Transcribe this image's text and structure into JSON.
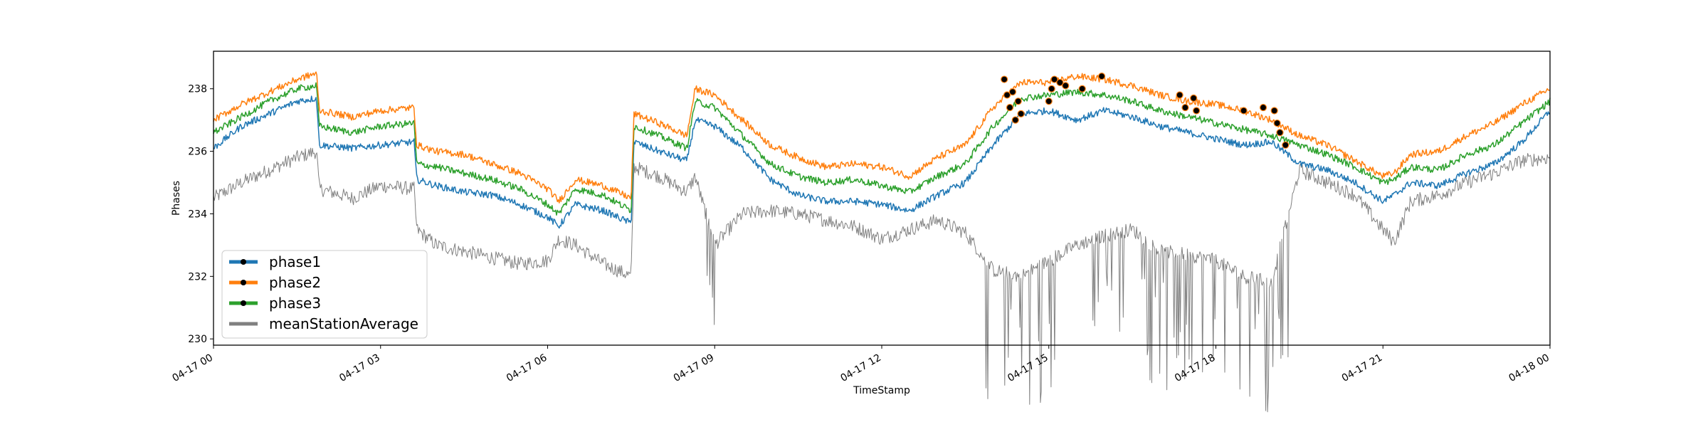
{
  "chart_data": {
    "type": "line",
    "title": "",
    "xlabel": "TimeStamp",
    "ylabel": "Phases",
    "ylim": [
      229.8,
      239.2
    ],
    "xlim_hours": [
      0,
      24
    ],
    "y_ticks": [
      230,
      232,
      234,
      236,
      238
    ],
    "x_ticks": [
      {
        "hour": 0,
        "label": "04-17 00"
      },
      {
        "hour": 3,
        "label": "04-17 03"
      },
      {
        "hour": 6,
        "label": "04-17 06"
      },
      {
        "hour": 9,
        "label": "04-17 09"
      },
      {
        "hour": 12,
        "label": "04-17 12"
      },
      {
        "hour": 15,
        "label": "04-17 15"
      },
      {
        "hour": 18,
        "label": "04-17 18"
      },
      {
        "hour": 21,
        "label": "04-17 21"
      },
      {
        "hour": 24,
        "label": "04-18 00"
      }
    ],
    "grid": false,
    "legend_position": "lower-left",
    "x_hours": [
      0,
      0.5,
      1,
      1.5,
      1.85,
      1.9,
      2.5,
      3,
      3.6,
      3.65,
      4,
      4.5,
      5,
      5.5,
      6,
      6.2,
      6.5,
      7,
      7.5,
      7.55,
      8,
      8.5,
      8.65,
      9,
      9.5,
      10,
      10.5,
      11,
      11.5,
      12,
      12.5,
      13,
      13.5,
      14,
      14.5,
      15,
      15.5,
      16,
      16.5,
      17,
      17.5,
      18,
      18.5,
      19,
      19.5,
      20,
      20.5,
      21,
      21.2,
      21.5,
      22,
      22.5,
      23,
      23.5,
      24
    ],
    "series": [
      {
        "name": "phase1",
        "color": "#1f77b4",
        "markers": true,
        "values": [
          236.1,
          236.8,
          237.2,
          237.6,
          237.7,
          236.2,
          236.1,
          236.2,
          236.3,
          235.1,
          234.9,
          234.7,
          234.6,
          234.3,
          233.9,
          233.6,
          234.3,
          234.1,
          233.7,
          236.3,
          236.0,
          235.7,
          237.0,
          236.8,
          236.1,
          235.1,
          234.6,
          234.4,
          234.4,
          234.3,
          234.1,
          234.6,
          235.0,
          236.2,
          237.2,
          237.3,
          237.0,
          237.3,
          237.1,
          236.8,
          236.6,
          236.4,
          236.2,
          236.3,
          235.6,
          235.4,
          235.0,
          234.4,
          234.6,
          235.0,
          234.9,
          235.3,
          235.6,
          236.3,
          237.3
        ]
      },
      {
        "name": "phase2",
        "color": "#ff7f0e",
        "markers": true,
        "values": [
          237.0,
          237.5,
          237.9,
          238.3,
          238.5,
          237.3,
          237.1,
          237.3,
          237.4,
          236.2,
          236.0,
          235.9,
          235.6,
          235.3,
          234.8,
          234.4,
          235.1,
          234.9,
          234.5,
          237.2,
          236.9,
          236.5,
          238.0,
          237.8,
          237.0,
          236.2,
          235.8,
          235.5,
          235.6,
          235.5,
          235.2,
          235.8,
          236.2,
          237.4,
          238.2,
          238.2,
          238.4,
          238.3,
          238.1,
          237.8,
          237.6,
          237.5,
          237.3,
          237.0,
          236.5,
          236.2,
          235.7,
          235.2,
          235.3,
          235.9,
          236.0,
          236.5,
          236.9,
          237.5,
          238.0
        ]
      },
      {
        "name": "phase3",
        "color": "#2ca02c",
        "markers": true,
        "values": [
          236.6,
          237.1,
          237.6,
          238.0,
          238.1,
          236.8,
          236.6,
          236.8,
          236.9,
          235.6,
          235.5,
          235.3,
          235.1,
          234.8,
          234.3,
          234.0,
          234.8,
          234.6,
          234.1,
          236.8,
          236.5,
          236.1,
          237.6,
          237.4,
          236.5,
          235.6,
          235.2,
          235.0,
          235.1,
          234.9,
          234.7,
          235.2,
          235.6,
          236.8,
          237.7,
          237.8,
          237.9,
          237.8,
          237.6,
          237.3,
          237.1,
          236.9,
          236.7,
          236.5,
          236.2,
          235.9,
          235.5,
          235.0,
          235.1,
          235.5,
          235.4,
          235.9,
          236.2,
          236.9,
          237.6
        ]
      },
      {
        "name": "meanStationAverage",
        "color": "#808080",
        "markers": false,
        "values": [
          234.5,
          235.0,
          235.4,
          235.8,
          236.0,
          234.8,
          234.5,
          234.9,
          234.8,
          233.5,
          233.0,
          232.8,
          232.6,
          232.4,
          232.5,
          233.2,
          233.0,
          232.4,
          232.0,
          235.5,
          235.2,
          234.7,
          235.2,
          233.0,
          234.0,
          234.1,
          234.0,
          233.8,
          233.6,
          233.2,
          233.5,
          233.8,
          233.4,
          232.2,
          232.0,
          232.5,
          233.0,
          233.3,
          233.5,
          232.8,
          232.7,
          232.5,
          232.0,
          231.8,
          235.4,
          235.0,
          234.6,
          233.5,
          233.1,
          234.4,
          234.6,
          235.0,
          235.3,
          235.7,
          235.8
        ]
      }
    ],
    "highlight_markers": [
      {
        "hour": 14.2,
        "value": 238.3
      },
      {
        "hour": 14.25,
        "value": 237.8
      },
      {
        "hour": 14.3,
        "value": 237.4
      },
      {
        "hour": 14.35,
        "value": 237.9
      },
      {
        "hour": 14.4,
        "value": 237.0
      },
      {
        "hour": 14.45,
        "value": 237.6
      },
      {
        "hour": 14.5,
        "value": 237.2
      },
      {
        "hour": 15.0,
        "value": 237.6
      },
      {
        "hour": 15.05,
        "value": 238.0
      },
      {
        "hour": 15.1,
        "value": 238.3
      },
      {
        "hour": 15.2,
        "value": 238.2
      },
      {
        "hour": 15.3,
        "value": 238.1
      },
      {
        "hour": 15.6,
        "value": 238.0
      },
      {
        "hour": 15.95,
        "value": 238.4
      },
      {
        "hour": 17.35,
        "value": 237.8
      },
      {
        "hour": 17.45,
        "value": 237.4
      },
      {
        "hour": 17.6,
        "value": 237.7
      },
      {
        "hour": 17.65,
        "value": 237.3
      },
      {
        "hour": 18.5,
        "value": 237.3
      },
      {
        "hour": 18.85,
        "value": 237.4
      },
      {
        "hour": 19.05,
        "value": 237.3
      },
      {
        "hour": 19.1,
        "value": 236.9
      },
      {
        "hour": 19.15,
        "value": 236.6
      },
      {
        "hour": 19.25,
        "value": 236.2
      }
    ]
  }
}
